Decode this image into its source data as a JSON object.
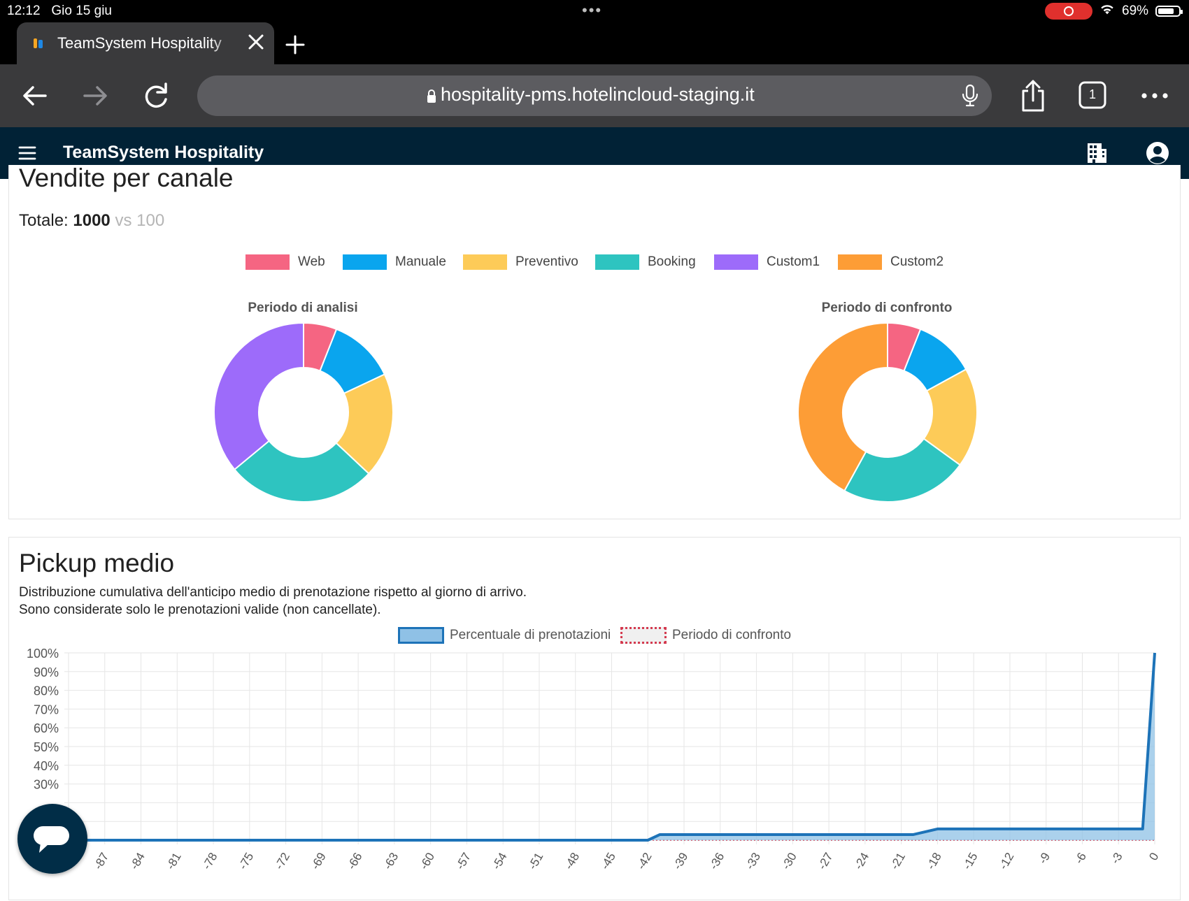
{
  "status_bar": {
    "time": "12:12",
    "date": "Gio 15 giu",
    "battery_percent": "69%",
    "battery_level": 0.69
  },
  "browser": {
    "tab_title": "TeamSystem Hospitality",
    "url": "hospitality-pms.hotelincloud-staging.it",
    "tab_count": "1"
  },
  "app": {
    "brand": "TeamSystem Hospitality"
  },
  "sales": {
    "title": "Vendite per canale",
    "total_label": "Totale:",
    "total_value": "1000",
    "total_compare": "vs 100",
    "legend": [
      {
        "label": "Web",
        "color": "#f56582"
      },
      {
        "label": "Manuale",
        "color": "#0aa5ee"
      },
      {
        "label": "Preventivo",
        "color": "#fdcb58"
      },
      {
        "label": "Booking",
        "color": "#2ec4c0"
      },
      {
        "label": "Custom1",
        "color": "#9d6bfa"
      },
      {
        "label": "Custom2",
        "color": "#fd9d36"
      }
    ]
  },
  "pickup": {
    "title": "Pickup medio",
    "desc_line1": "Distribuzione cumulativa dell'anticipo medio di prenotazione rispetto al giorno di arrivo.",
    "desc_line2": "Sono considerate solo le prenotazioni valide (non cancellate).",
    "legend": [
      {
        "label": "Percentuale di prenotazioni",
        "fill": "#8fc1e6",
        "stroke": "#1d73b8"
      },
      {
        "label": "Periodo di confronto",
        "fill": "#f0f0f0",
        "stroke": "#d43a4f"
      }
    ]
  },
  "chart_data": [
    {
      "type": "pie",
      "title": "Periodo di analisi",
      "categories": [
        "Web",
        "Manuale",
        "Preventivo",
        "Booking",
        "Custom1",
        "Custom2"
      ],
      "values": [
        6,
        12,
        19,
        27,
        36,
        0
      ],
      "colors": [
        "#f56582",
        "#0aa5ee",
        "#fdcb58",
        "#2ec4c0",
        "#9d6bfa",
        "#fd9d36"
      ],
      "legend": "top"
    },
    {
      "type": "pie",
      "title": "Periodo di confronto",
      "categories": [
        "Web",
        "Manuale",
        "Preventivo",
        "Booking",
        "Custom1",
        "Custom2"
      ],
      "values": [
        6,
        11,
        18,
        23,
        0,
        42
      ],
      "colors": [
        "#f56582",
        "#0aa5ee",
        "#fdcb58",
        "#2ec4c0",
        "#9d6bfa",
        "#fd9d36"
      ],
      "legend": "top"
    },
    {
      "type": "area",
      "x": [
        -90,
        -87,
        -84,
        -81,
        -78,
        -75,
        -72,
        -69,
        -66,
        -63,
        -60,
        -57,
        -54,
        -51,
        -48,
        -45,
        -42,
        -41,
        -39,
        -36,
        -33,
        -30,
        -27,
        -24,
        -21,
        -20,
        -18,
        -15,
        -12,
        -9,
        -6,
        -3,
        -1,
        0
      ],
      "xticks": [
        -90,
        -87,
        -84,
        -81,
        -78,
        -75,
        -72,
        -69,
        -66,
        -63,
        -60,
        -57,
        -54,
        -51,
        -48,
        -45,
        -42,
        -39,
        -36,
        -33,
        -30,
        -27,
        -24,
        -21,
        -18,
        -15,
        -12,
        -9,
        -6,
        -3,
        0
      ],
      "yticks": [
        "30%",
        "40%",
        "50%",
        "60%",
        "70%",
        "80%",
        "90%",
        "100%"
      ],
      "ylim": [
        0,
        100
      ],
      "grid": true,
      "legend": "top",
      "series": [
        {
          "name": "Percentuale di prenotazioni",
          "values": [
            0,
            0,
            0,
            0,
            0,
            0,
            0,
            0,
            0,
            0,
            0,
            0,
            0,
            0,
            0,
            0,
            0,
            3,
            3,
            3,
            3,
            3,
            3,
            3,
            3,
            3,
            6,
            6,
            6,
            6,
            6,
            6,
            6,
            100
          ]
        },
        {
          "name": "Periodo di confronto",
          "values": [
            0,
            0,
            0,
            0,
            0,
            0,
            0,
            0,
            0,
            0,
            0,
            0,
            0,
            0,
            0,
            0,
            0,
            0,
            0,
            0,
            0,
            0,
            0,
            0,
            0,
            0,
            0,
            0,
            0,
            0,
            0,
            0,
            0,
            0
          ]
        }
      ]
    }
  ]
}
